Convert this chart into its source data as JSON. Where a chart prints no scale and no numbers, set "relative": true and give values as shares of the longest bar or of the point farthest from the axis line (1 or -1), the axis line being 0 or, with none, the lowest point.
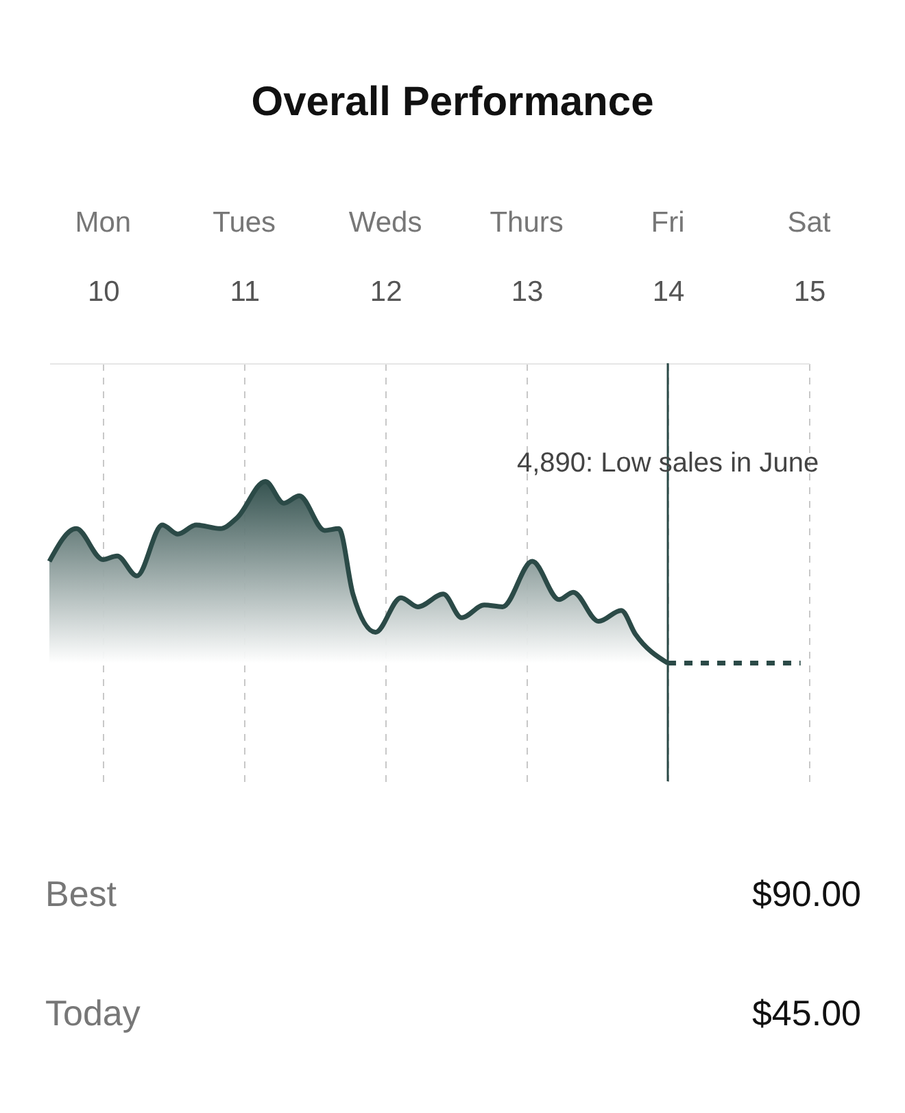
{
  "chart_data": {
    "type": "line",
    "title": "Overall Performance",
    "relative": true,
    "xlim": [
      9.62,
      15
    ],
    "xticks": [
      10,
      11,
      12,
      13,
      14,
      15
    ],
    "grid": "x",
    "series": [
      {
        "type": "area",
        "color": "#2b4a47",
        "line_style": "solid",
        "x": [
          9.62,
          9.81,
          10,
          10.1,
          10.24,
          10.42,
          10.53,
          10.66,
          10.83,
          10.95,
          11.15,
          11.28,
          11.39,
          11.57,
          11.67,
          11.77,
          11.93,
          12.11,
          12.23,
          12.41,
          12.54,
          12.7,
          12.83,
          13.04,
          13.23,
          13.33,
          13.51,
          13.67,
          13.77,
          14
        ],
        "values": [
          0.56,
          0.74,
          0.57,
          0.59,
          0.48,
          0.76,
          0.71,
          0.76,
          0.74,
          0.8,
          1.0,
          0.88,
          0.92,
          0.73,
          0.74,
          0.38,
          0.17,
          0.36,
          0.31,
          0.38,
          0.25,
          0.32,
          0.31,
          0.56,
          0.35,
          0.39,
          0.23,
          0.29,
          0.16,
          0
        ]
      },
      {
        "color": "#2b4a47",
        "line_style": "dashed",
        "x": [
          14,
          14.94
        ],
        "values": [
          0,
          0
        ]
      }
    ],
    "ref_lines": [
      {
        "axis": "x",
        "value": 14,
        "color": "#2b4a47",
        "line_style": "solid"
      }
    ],
    "annotations": [
      {
        "text": "4,890:  Low sales in June",
        "x": 14
      },
      "Best",
      "$90.00",
      "Today",
      "$45.00",
      "Mon",
      "Tues",
      "Weds",
      "Thurs",
      "Fri",
      "Sat"
    ]
  }
}
